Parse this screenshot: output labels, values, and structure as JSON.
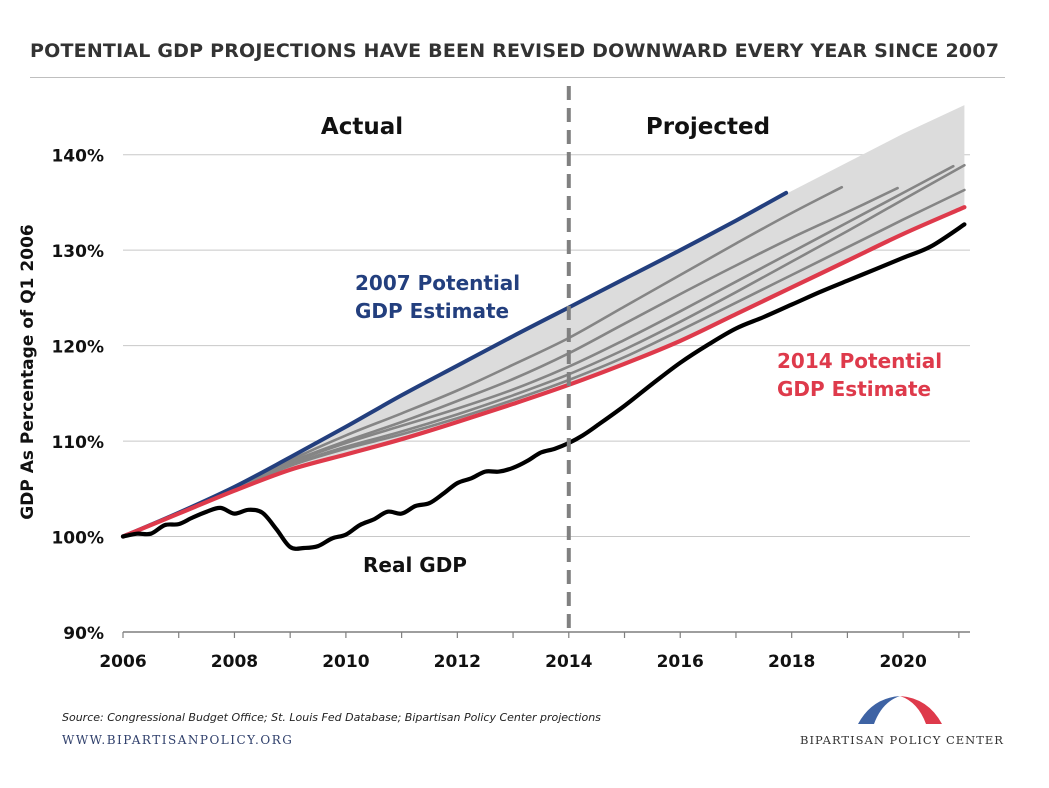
{
  "title": "POTENTIAL GDP PROJECTIONS HAVE BEEN REVISED DOWNWARD EVERY YEAR SINCE 2007",
  "source": "Source: Congressional Budget Office;  St. Louis Fed Database; Bipartisan Policy Center projections",
  "website": "WWW.BIPARTISANPOLICY.ORG",
  "org_name": "BIPARTISAN POLICY CENTER",
  "colors": {
    "potential_2007": "#233f7e",
    "potential_2014": "#de3a4b",
    "real_gdp": "#000000",
    "vintages": "#858585",
    "band": "#dcdcdc",
    "logo_blue": "#3e63a4",
    "logo_red": "#de3a4b"
  },
  "chart_data": {
    "type": "line",
    "title": "",
    "xlabel": "",
    "ylabel": "GDP As Percentage of Q1 2006",
    "xlim": [
      2006,
      2021.2
    ],
    "ylim": [
      90,
      145
    ],
    "x_ticks": [
      "2006",
      "2008",
      "2010",
      "2012",
      "2014",
      "2016",
      "2018",
      "2020"
    ],
    "y_ticks": [
      "90%",
      "100%",
      "110%",
      "120%",
      "130%",
      "140%"
    ],
    "grid": true,
    "divider_x": 2014,
    "region_labels": [
      "Actual",
      "Projected"
    ],
    "annotations": [
      "2007 Potential GDP Estimate",
      "2014 Potential GDP Estimate",
      "Real GDP"
    ],
    "band": {
      "x": [
        2006,
        2007,
        2008,
        2009,
        2010,
        2011,
        2012,
        2013,
        2014,
        2015,
        2016,
        2017,
        2018,
        2019,
        2020,
        2021.1
      ],
      "upper": [
        100,
        102.5,
        105.2,
        108.3,
        111.5,
        114.8,
        117.9,
        121.0,
        124.0,
        127.0,
        130.0,
        133.2,
        136.2,
        139.2,
        142.2,
        145.2
      ],
      "lower": [
        100,
        102.4,
        104.8,
        107.0,
        108.6,
        110.2,
        112.0,
        113.9,
        115.9,
        118.1,
        120.5,
        123.3,
        126.1,
        128.9,
        131.7,
        134.5
      ]
    },
    "series": [
      {
        "name": "2007 Potential GDP Estimate",
        "x": [
          2006.0,
          2007.0,
          2008.0,
          2009.0,
          2010.0,
          2011.0,
          2012.0,
          2013.0,
          2014.0,
          2015.0,
          2016.0,
          2017.0,
          2017.9
        ],
        "values": [
          100.0,
          102.5,
          105.2,
          108.3,
          111.5,
          114.8,
          117.9,
          121.0,
          124.0,
          127.0,
          130.0,
          133.1,
          136.0
        ]
      },
      {
        "x": [
          2006.0,
          2007.0,
          2008.0,
          2009.0,
          2010.0,
          2011.0,
          2012.0,
          2013.0,
          2014.0,
          2015.0,
          2016.0,
          2017.0,
          2018.0,
          2018.9
        ],
        "values": [
          100.0,
          102.5,
          105.1,
          108.0,
          110.6,
          112.9,
          115.3,
          118.0,
          120.8,
          124.1,
          127.4,
          130.7,
          133.9,
          136.6
        ]
      },
      {
        "x": [
          2006.0,
          2007.0,
          2008.0,
          2009.0,
          2010.0,
          2011.0,
          2012.0,
          2013.0,
          2014.0,
          2015.0,
          2016.0,
          2017.0,
          2018.0,
          2019.0,
          2019.9
        ],
        "values": [
          100.0,
          102.5,
          105.1,
          107.8,
          110.0,
          112.0,
          114.2,
          116.5,
          119.2,
          122.3,
          125.4,
          128.4,
          131.3,
          134.0,
          136.5
        ]
      },
      {
        "x": [
          2006.0,
          2007.0,
          2008.0,
          2009.0,
          2010.0,
          2011.0,
          2012.0,
          2013.0,
          2014.0,
          2015.0,
          2016.0,
          2017.0,
          2018.0,
          2019.0,
          2020.0,
          2020.9
        ],
        "values": [
          100.0,
          102.5,
          105.1,
          107.7,
          109.8,
          111.6,
          113.4,
          115.4,
          117.8,
          120.6,
          123.6,
          126.7,
          129.8,
          132.9,
          136.0,
          138.8
        ]
      },
      {
        "x": [
          2006.0,
          2007.0,
          2008.0,
          2009.0,
          2010.0,
          2011.0,
          2012.0,
          2013.0,
          2014.0,
          2015.0,
          2016.0,
          2017.0,
          2018.0,
          2019.0,
          2020.0,
          2021.1
        ],
        "values": [
          100.0,
          102.5,
          105.0,
          107.5,
          109.4,
          111.0,
          112.8,
          114.8,
          117.0,
          119.6,
          122.5,
          125.6,
          128.8,
          132.0,
          135.3,
          138.9
        ]
      },
      {
        "x": [
          2006.0,
          2007.0,
          2008.0,
          2009.0,
          2010.0,
          2011.0,
          2012.0,
          2013.0,
          2014.0,
          2015.0,
          2016.0,
          2017.0,
          2018.0,
          2019.0,
          2020.0,
          2021.1
        ],
        "values": [
          100.0,
          102.5,
          105.0,
          107.4,
          109.2,
          110.7,
          112.4,
          114.3,
          116.4,
          118.8,
          121.6,
          124.5,
          127.4,
          130.3,
          133.2,
          136.3
        ]
      },
      {
        "name": "2014 Potential GDP Estimate",
        "x": [
          2006.0,
          2007.0,
          2008.0,
          2009.0,
          2010.0,
          2011.0,
          2012.0,
          2013.0,
          2014.0,
          2015.0,
          2016.0,
          2017.0,
          2018.0,
          2019.0,
          2020.0,
          2021.1
        ],
        "values": [
          100.0,
          102.4,
          104.8,
          107.0,
          108.6,
          110.2,
          112.0,
          113.9,
          115.9,
          118.1,
          120.5,
          123.3,
          126.1,
          128.9,
          131.7,
          134.5
        ]
      },
      {
        "name": "Real GDP",
        "x": [
          2006.0,
          2006.25,
          2006.5,
          2006.75,
          2007.0,
          2007.25,
          2007.5,
          2007.75,
          2008.0,
          2008.25,
          2008.5,
          2008.75,
          2009.0,
          2009.25,
          2009.5,
          2009.75,
          2010.0,
          2010.25,
          2010.5,
          2010.75,
          2011.0,
          2011.25,
          2011.5,
          2011.75,
          2012.0,
          2012.25,
          2012.5,
          2012.75,
          2013.0,
          2013.25,
          2013.5,
          2013.75,
          2014.0,
          2014.25,
          2014.5,
          2015.0,
          2015.5,
          2016.0,
          2016.5,
          2017.0,
          2017.5,
          2018.0,
          2018.5,
          2019.0,
          2019.5,
          2020.0,
          2020.5,
          2021.1
        ],
        "values": [
          100.0,
          100.3,
          100.3,
          101.2,
          101.3,
          102.0,
          102.6,
          103.0,
          102.4,
          102.8,
          102.5,
          100.8,
          98.9,
          98.8,
          99.0,
          99.8,
          100.2,
          101.2,
          101.8,
          102.6,
          102.4,
          103.2,
          103.5,
          104.5,
          105.6,
          106.1,
          106.8,
          106.8,
          107.2,
          107.9,
          108.8,
          109.2,
          109.8,
          110.6,
          111.6,
          113.7,
          116.0,
          118.2,
          120.1,
          121.8,
          123.0,
          124.3,
          125.6,
          126.8,
          128.0,
          129.2,
          130.4,
          132.7
        ]
      }
    ]
  }
}
